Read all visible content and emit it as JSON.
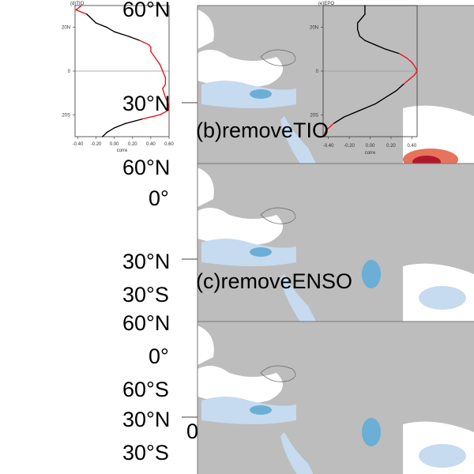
{
  "colors": {
    "land": "#bdbdbd",
    "ocean_white": "#ffffff",
    "neg_light": "#c6dbef",
    "neg_mid": "#6baed6",
    "neg_dark": "#2166ac",
    "pos_mid": "#e6735c",
    "pos_dark": "#b2182b",
    "curve_sig": "#e31a1c",
    "curve": "#000000"
  },
  "map_labels": {
    "panel_b": "(b)removeTIO",
    "panel_c": "(c)removeENSO",
    "lat_60n_a": "60°N",
    "lat_30n_a": "30°N",
    "lat_60n_b": "60°N",
    "lat_0_b": "0°",
    "lat_30n_b": "30°N",
    "lat_30s_b": "30°S",
    "lat_60n_c": "60°N",
    "lat_0_c": "0°",
    "lat_60s_c": "60°S",
    "lat_30n_c": "30°N",
    "lon_0": "0",
    "lat_30s_c": "30°S"
  },
  "chart_data": [
    {
      "type": "line",
      "title": "(d)TIO",
      "xlabel": "corre",
      "ylabel": "",
      "xlim": [
        -0.43,
        0.6
      ],
      "ylim": [
        -30,
        30
      ],
      "xticks": [
        "-0.40",
        "-0.20",
        "0.00",
        "0.20",
        "0.40",
        "0.60"
      ],
      "yticks": [
        "20N",
        "0",
        "20S"
      ],
      "significant_color": "red",
      "points": [
        [
          30,
          -0.36
        ],
        [
          28,
          -0.42
        ],
        [
          26,
          -0.3
        ],
        [
          24,
          -0.25
        ],
        [
          22,
          -0.2
        ],
        [
          20,
          -0.08
        ],
        [
          18,
          0.0
        ],
        [
          16,
          0.15
        ],
        [
          14,
          0.28
        ],
        [
          12,
          0.38
        ],
        [
          11,
          0.4
        ],
        [
          9,
          0.4
        ],
        [
          6,
          0.45
        ],
        [
          3,
          0.5
        ],
        [
          0,
          0.53
        ],
        [
          -3,
          0.56
        ],
        [
          -6,
          0.56
        ],
        [
          -8,
          0.53
        ],
        [
          -12,
          0.56
        ],
        [
          -16,
          0.6
        ],
        [
          -18,
          0.59
        ],
        [
          -20,
          0.5
        ],
        [
          -22,
          0.3
        ],
        [
          -24,
          0.12
        ],
        [
          -26,
          0.0
        ],
        [
          -28,
          -0.08
        ],
        [
          -30,
          -0.13
        ]
      ]
    },
    {
      "type": "line",
      "title": "(e)EPO",
      "xlabel": "corre",
      "ylabel": "",
      "xlim": [
        -0.45,
        0.45
      ],
      "ylim": [
        -30,
        30
      ],
      "xticks": [
        "-0.40",
        "-0.20",
        "0.00",
        "0.20",
        "0.40"
      ],
      "yticks": [
        "20N",
        "0",
        "20S"
      ],
      "significant_color": "red",
      "points": [
        [
          30,
          -0.05
        ],
        [
          26,
          -0.05
        ],
        [
          22,
          -0.12
        ],
        [
          19,
          -0.12
        ],
        [
          16,
          -0.1
        ],
        [
          14,
          -0.05
        ],
        [
          12,
          0.05
        ],
        [
          10,
          0.15
        ],
        [
          8,
          0.28
        ],
        [
          6,
          0.35
        ],
        [
          4,
          0.4
        ],
        [
          2,
          0.43
        ],
        [
          0,
          0.45
        ],
        [
          -2,
          0.42
        ],
        [
          -4,
          0.37
        ],
        [
          -6,
          0.32
        ],
        [
          -9,
          0.25
        ],
        [
          -12,
          0.15
        ],
        [
          -15,
          0.05
        ],
        [
          -18,
          -0.1
        ],
        [
          -21,
          -0.25
        ],
        [
          -24,
          -0.35
        ],
        [
          -27,
          -0.42
        ],
        [
          -30,
          -0.45
        ]
      ]
    }
  ]
}
